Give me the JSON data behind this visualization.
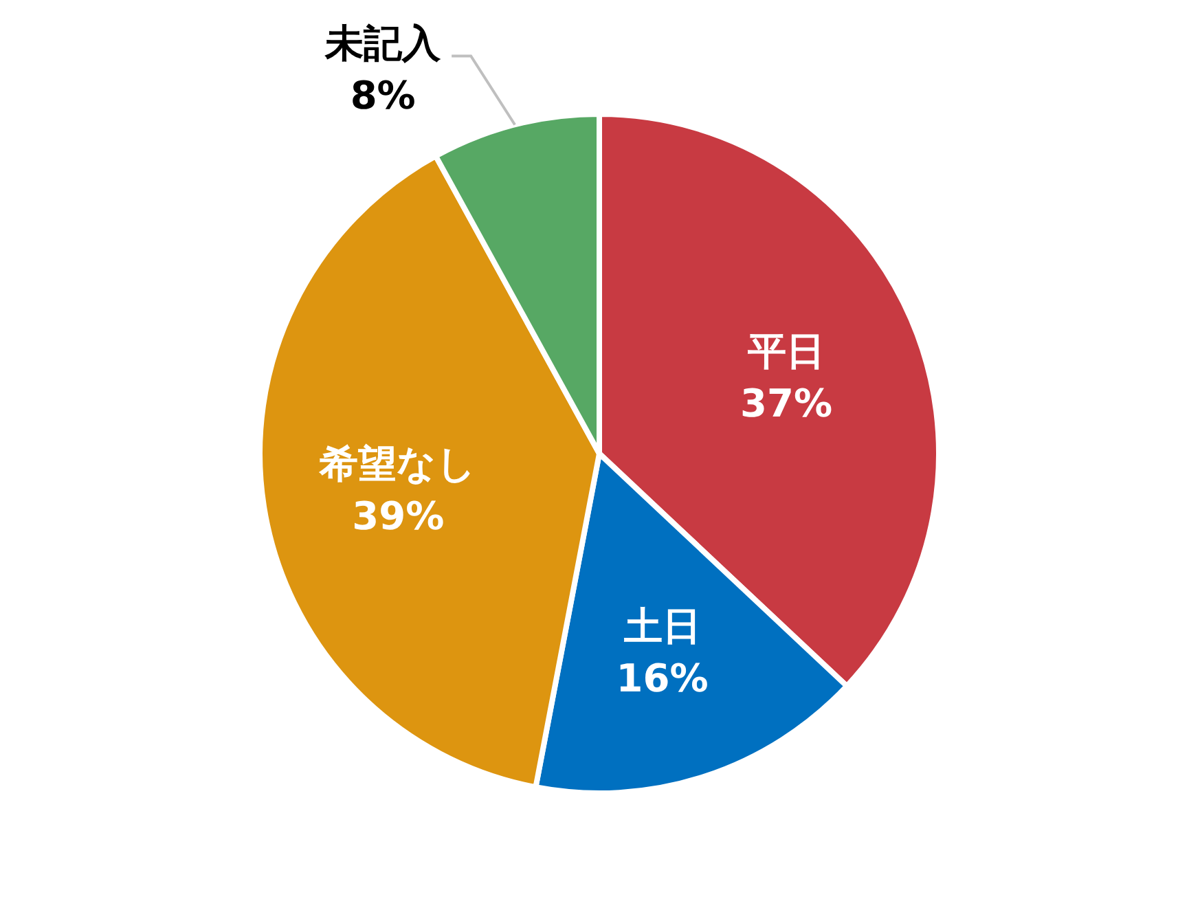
{
  "chart_data": {
    "type": "pie",
    "categories": [
      "平日",
      "土日",
      "希望なし",
      "未記入"
    ],
    "values": [
      37,
      16,
      39,
      8
    ],
    "colors": [
      "#c83a42",
      "#0070c0",
      "#dd9510",
      "#57a864"
    ],
    "value_labels": [
      "37%",
      "16%",
      "39%",
      "8%"
    ]
  }
}
